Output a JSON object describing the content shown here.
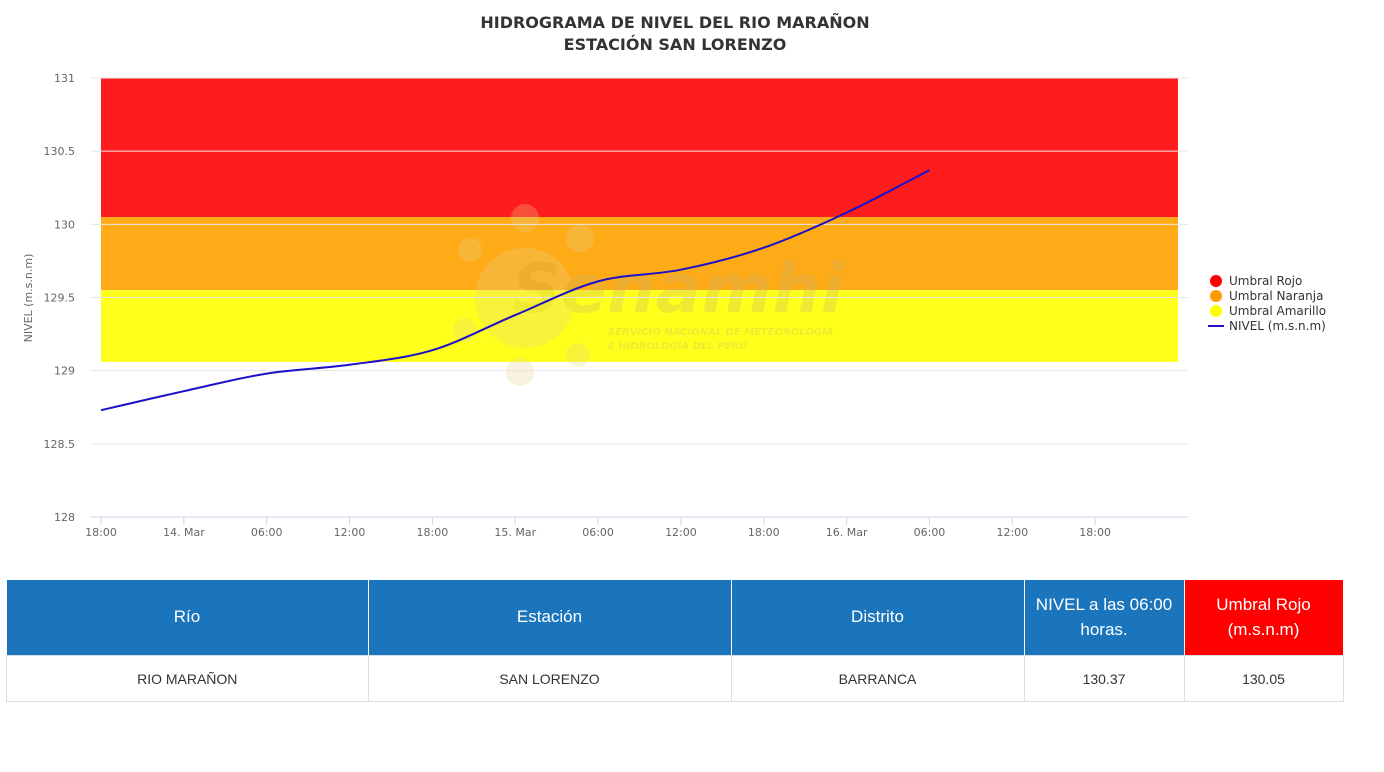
{
  "chart_data": {
    "type": "line",
    "title": [
      "HIDROGRAMA DE NIVEL DEL RIO MARAÑON",
      "ESTACIÓN SAN LORENZO"
    ],
    "ylabel": "NIVEL (m.s.n.m)",
    "xlabel": "",
    "ylim": [
      128,
      131
    ],
    "y_ticks": [
      "128",
      "128.5",
      "129",
      "129.5",
      "130",
      "130.5",
      "131"
    ],
    "y_tick_values": [
      128,
      128.5,
      129,
      129.5,
      130,
      130.5,
      131
    ],
    "x_tick_labels": [
      "18:00",
      "14. Mar",
      "06:00",
      "12:00",
      "18:00",
      "15. Mar",
      "06:00",
      "12:00",
      "18:00",
      "16. Mar",
      "06:00",
      "12:00",
      "18:00"
    ],
    "x_hours_range": [
      0,
      78
    ],
    "grid": "horizontal",
    "legend_position": "right",
    "bands": [
      {
        "name": "Umbral Rojo",
        "color": "#ff1c1c",
        "from": 130.05,
        "to": 131
      },
      {
        "name": "Umbral Naranja",
        "color": "#ffab18",
        "from": 129.55,
        "to": 130.05
      },
      {
        "name": "Umbral Amarillo",
        "color": "#ffff1c",
        "from": 129.06,
        "to": 129.55
      }
    ],
    "series": [
      {
        "name": "NIVEL (m.s.n.m)",
        "color": "#1c10c8",
        "x_hours": [
          0,
          6,
          12,
          18,
          24,
          30,
          36,
          42,
          48,
          54,
          60
        ],
        "values": [
          128.73,
          128.86,
          128.98,
          129.04,
          129.14,
          129.38,
          129.61,
          129.69,
          129.84,
          130.08,
          130.37
        ]
      }
    ],
    "legend_markers": [
      "circle",
      "circle",
      "circle",
      "line"
    ]
  },
  "watermark": {
    "brand": "Senamhi",
    "line1": "SERVICIO NACIONAL DE METEOROLOGÍA",
    "line2": "E HIDROLOGÍA DEL PERÚ"
  },
  "table": {
    "headers": [
      "Río",
      "Estación",
      "Distrito",
      "NIVEL a las 06:00 horas.",
      "Umbral Rojo (m.s.n.m)"
    ],
    "header_colors": [
      "#1b75bc",
      "#1b75bc",
      "#1b75bc",
      "#1b75bc",
      "#ff0000"
    ],
    "rows": [
      [
        "RIO MARAÑON",
        "SAN LORENZO",
        "BARRANCA",
        "130.37",
        "130.05"
      ]
    ]
  }
}
